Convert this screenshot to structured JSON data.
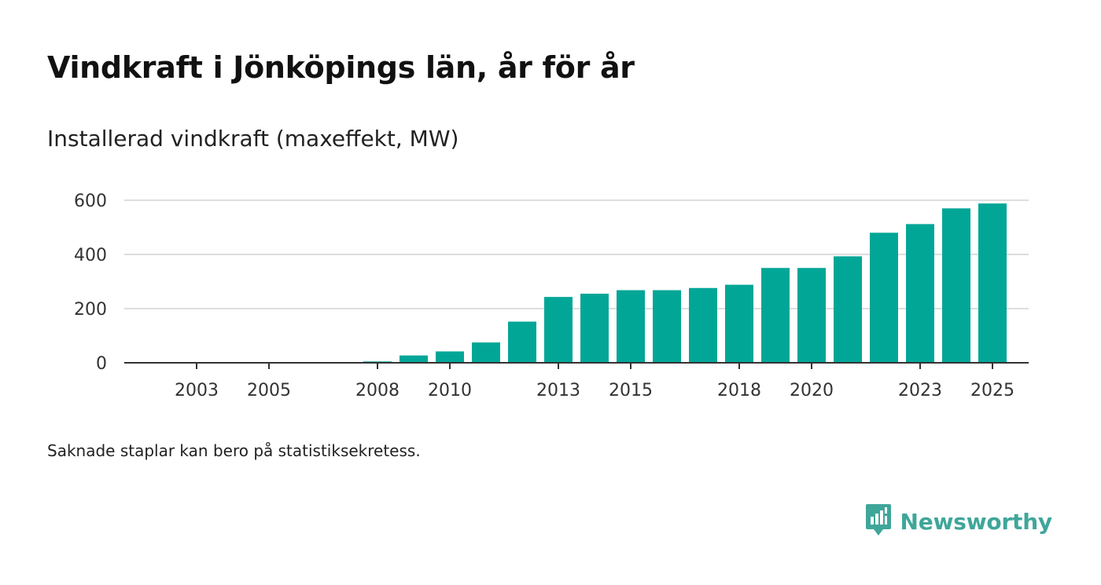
{
  "header": {
    "title": "Vindkraft i Jönköpings län, år för år",
    "subtitle": "Installerad vindkraft (maxeffekt, MW)"
  },
  "footnote": "Saknade staplar kan bero på statistiksekretess.",
  "brand": {
    "name": "Newsworthy",
    "icon": "newsworthy-logo-icon"
  },
  "colors": {
    "bar": "#02a697",
    "grid": "#dddddd",
    "axis": "#333333",
    "brand": "#3fa69a"
  },
  "chart_data": {
    "type": "bar",
    "title": "Vindkraft i Jönköpings län, år för år",
    "ylabel": "Installerad vindkraft (maxeffekt, MW)",
    "xlabel": "",
    "categories": [
      "2002",
      "2003",
      "2004",
      "2005",
      "2006",
      "2007",
      "2008",
      "2009",
      "2010",
      "2011",
      "2012",
      "2013",
      "2014",
      "2015",
      "2016",
      "2017",
      "2018",
      "2019",
      "2020",
      "2021",
      "2022",
      "2023",
      "2024",
      "2025"
    ],
    "values": [
      0,
      0,
      0,
      0,
      0,
      0,
      5,
      27,
      42,
      75,
      152,
      243,
      255,
      268,
      268,
      276,
      288,
      350,
      350,
      393,
      480,
      512,
      570,
      588
    ],
    "x_tick_labels": [
      "2003",
      "2005",
      "2008",
      "2010",
      "2013",
      "2015",
      "2018",
      "2020",
      "2023",
      "2025"
    ],
    "y_ticks": [
      0,
      200,
      400,
      600
    ],
    "ylim": [
      0,
      620
    ],
    "grid": true,
    "legend": "none"
  }
}
